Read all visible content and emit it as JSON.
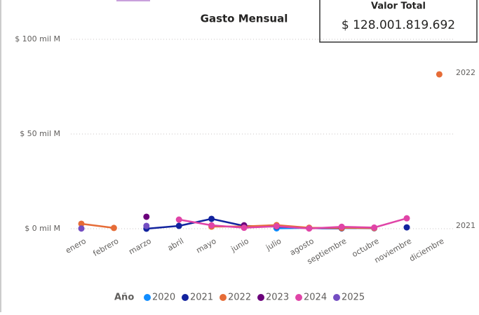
{
  "chart_data": {
    "type": "line",
    "title": "Gasto Mensual",
    "categories": [
      "enero",
      "febrero",
      "marzo",
      "abril",
      "mayo",
      "junio",
      "julio",
      "agosto",
      "septiembre",
      "octubre",
      "noviembre",
      "diciembre"
    ],
    "series": [
      {
        "name": "2020",
        "color": "#118DFF",
        "values": [
          null,
          null,
          null,
          null,
          null,
          null,
          0.2,
          0.4,
          0.3,
          0.2,
          null,
          null
        ]
      },
      {
        "name": "2021",
        "color": "#12239E",
        "values": [
          null,
          null,
          0,
          1.5,
          5.2,
          1.5,
          1.1,
          0.3,
          0.2,
          null,
          0.7,
          null
        ]
      },
      {
        "name": "2022",
        "color": "#E66C37",
        "values": [
          2.6,
          0.4,
          null,
          null,
          1.1,
          1.2,
          1.9,
          0.5,
          0.4,
          0.3,
          null,
          81.5
        ]
      },
      {
        "name": "2023",
        "color": "#6B007B",
        "values": [
          null,
          null,
          6.3,
          null,
          null,
          1.8,
          null,
          null,
          null,
          null,
          null,
          null
        ]
      },
      {
        "name": "2024",
        "color": "#E044A7",
        "values": [
          null,
          null,
          null,
          4.8,
          1.8,
          0.5,
          1.3,
          0.1,
          1.0,
          0.6,
          5.5,
          null
        ]
      },
      {
        "name": "2025",
        "color": "#744EC2",
        "values": [
          0.1,
          null,
          1.5,
          null,
          null,
          null,
          null,
          null,
          null,
          null,
          null,
          null
        ]
      }
    ],
    "ylim": [
      0,
      100
    ],
    "yticks": [
      {
        "value": 0,
        "label": "$ 0 mil M"
      },
      {
        "value": 50,
        "label": "$ 50 mil M"
      },
      {
        "value": 100,
        "label": "$ 100 mil M"
      }
    ],
    "grid": true,
    "legend_title": "Año"
  },
  "card": {
    "title": "Valor Total",
    "value": "$ 128.001.819.692"
  }
}
